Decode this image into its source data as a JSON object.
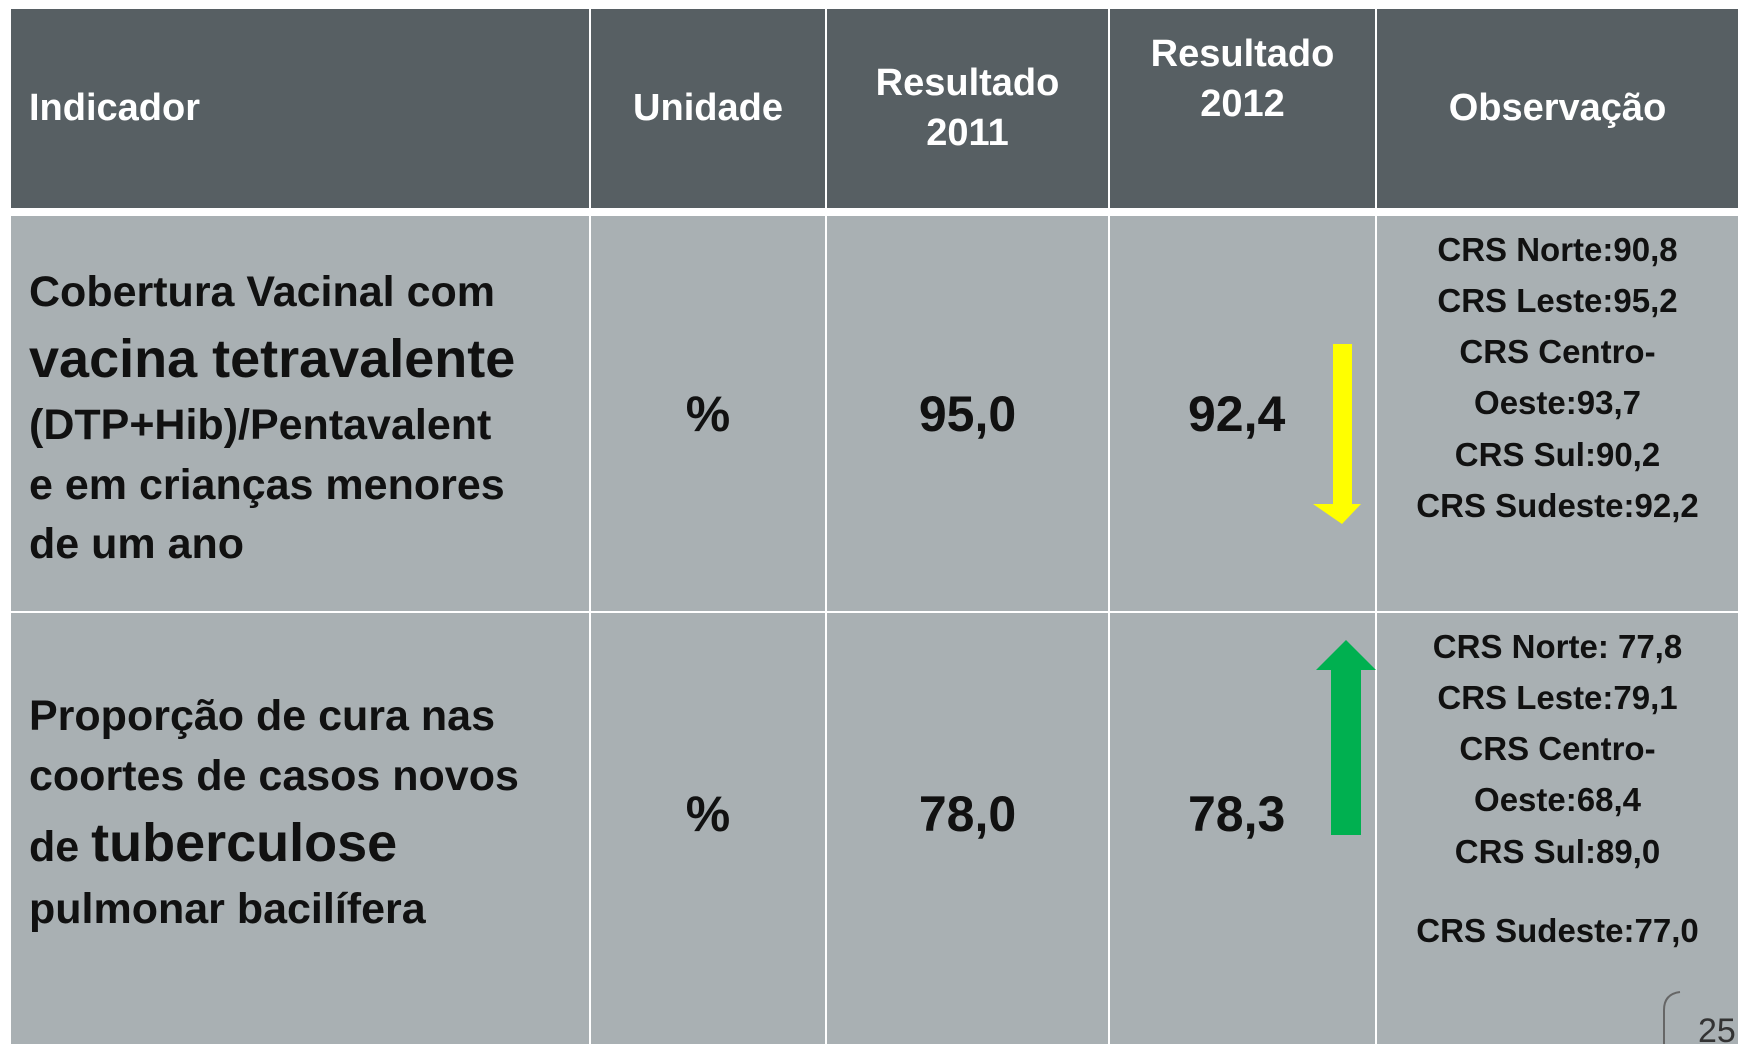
{
  "table": {
    "header": [
      "Indicador",
      "Unidade",
      [
        "Resultado",
        "2011"
      ],
      [
        "Resultado",
        "2012"
      ],
      "Observação"
    ],
    "rows": [
      {
        "indicator": [
          [
            "Cobertura Vacinal com"
          ],
          [
            "vacina tetravalente"
          ],
          [
            "(DTP+Hib)/Pentavalent"
          ],
          [
            "e em crianças menores"
          ],
          [
            "de um ano"
          ]
        ],
        "unit": "%",
        "result_2011": "95,0",
        "result_2012": "92,4",
        "observations": [
          "CRS Norte:90,8",
          "CRS Leste:95,2",
          "CRS Centro-",
          "Oeste:93,7",
          "CRS Sul:90,2",
          "CRS Sudeste:92,2"
        ]
      },
      {
        "indicator": [
          [
            "Proporção de cura nas"
          ],
          [
            "coortes de casos novos"
          ],
          [
            "de",
            "tuberculose"
          ],
          [
            "pulmonar bacilífera"
          ]
        ],
        "unit": "%",
        "result_2011": "78,0",
        "result_2012": "78,3",
        "observations": [
          "CRS Norte: 77,8",
          "CRS Leste:79,1",
          "CRS Centro-",
          "Oeste:68,4",
          "CRS Sul:89,0",
          "CRS Sudeste:77,0"
        ]
      }
    ]
  },
  "page_number": "25"
}
